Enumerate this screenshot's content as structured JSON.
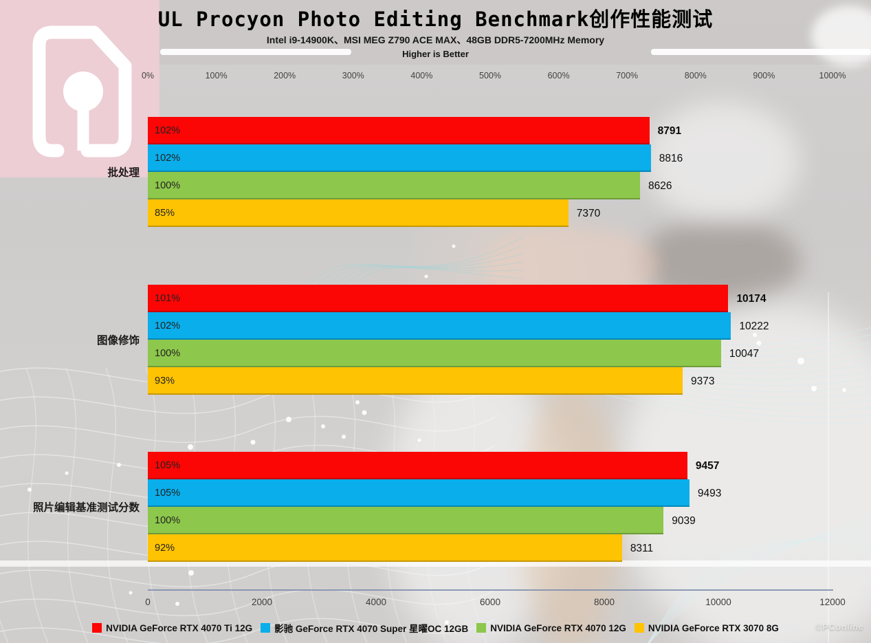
{
  "header": {
    "title": "UL Procyon Photo Editing Benchmark创作性能测试",
    "subtitle": "Intel i9-14900K、MSI MEG Z790 ACE MAX、48GB DDR5-7200MHz Memory",
    "note": "Higher is Better"
  },
  "footer": {
    "watermark": "©PConline"
  },
  "chart_data": {
    "type": "bar",
    "orientation": "horizontal",
    "title": "UL Procyon Photo Editing Benchmark创作性能测试",
    "subtitle": "Intel i9-14900K、MSI MEG Z790 ACE MAX、48GB DDR5-7200MHz Memory",
    "note": "Higher is Better",
    "grid": false,
    "legend_position": "bottom",
    "top_axis": {
      "ticks": [
        "0%",
        "100%",
        "200%",
        "300%",
        "400%",
        "500%",
        "600%",
        "700%",
        "800%",
        "900%",
        "1000%"
      ],
      "range": [
        0,
        1000
      ],
      "unit": "%"
    },
    "bottom_axis": {
      "ticks": [
        "0",
        "2000",
        "4000",
        "6000",
        "8000",
        "10000",
        "12000"
      ],
      "range": [
        0,
        12000
      ]
    },
    "categories": [
      "批处理",
      "图像修饰",
      "照片编辑基准测试分数"
    ],
    "series": [
      {
        "name": "NVIDIA GeForce RTX 4070 Ti 12G",
        "color": "#fb0505",
        "values": [
          8791,
          10174,
          9457
        ],
        "percent_labels": [
          "102%",
          "101%",
          "105%"
        ],
        "value_bold": true
      },
      {
        "name": "影驰 GeForce RTX 4070 Super 星曜OC 12GB",
        "color": "#09aeea",
        "values": [
          8816,
          10222,
          9493
        ],
        "percent_labels": [
          "102%",
          "102%",
          "105%"
        ],
        "value_bold": false
      },
      {
        "name": "NVIDIA GeForce RTX 4070 12G",
        "color": "#8dc74b",
        "values": [
          8626,
          10047,
          9039
        ],
        "percent_labels": [
          "100%",
          "100%",
          "100%"
        ],
        "value_bold": false
      },
      {
        "name": "NVIDIA GeForce RTX 3070 8G",
        "color": "#fec303",
        "values": [
          7370,
          9373,
          8311
        ],
        "percent_labels": [
          "85%",
          "93%",
          "92%"
        ],
        "value_bold": false
      }
    ]
  }
}
